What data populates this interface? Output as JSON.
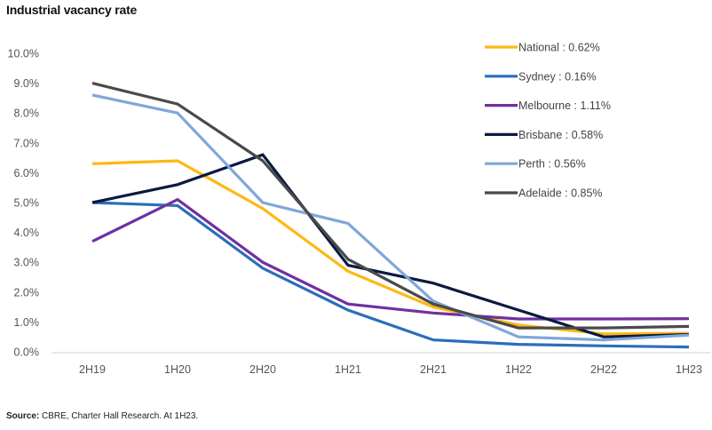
{
  "chart_data": {
    "type": "line",
    "title": "Industrial vacancy rate",
    "xlabel": "",
    "ylabel": "",
    "ylim": [
      0,
      10
    ],
    "yticks": [
      "0.0%",
      "1.0%",
      "2.0%",
      "3.0%",
      "4.0%",
      "5.0%",
      "6.0%",
      "7.0%",
      "8.0%",
      "9.0%",
      "10.0%"
    ],
    "categories": [
      "2H19",
      "1H20",
      "2H20",
      "1H21",
      "2H21",
      "1H22",
      "2H22",
      "1H23"
    ],
    "grid": false,
    "legend_position": "top-right",
    "series": [
      {
        "name": "National",
        "legend_label": "National : 0.62%",
        "color": "#FDB813",
        "values": [
          6.3,
          6.4,
          4.8,
          2.7,
          1.5,
          0.9,
          0.6,
          0.62
        ]
      },
      {
        "name": "Sydney",
        "legend_label": "Sydney : 0.16%",
        "color": "#2A6EBB",
        "values": [
          5.0,
          4.9,
          2.8,
          1.4,
          0.4,
          0.25,
          0.2,
          0.16
        ]
      },
      {
        "name": "Melbourne",
        "legend_label": "Melbourne : 1.11%",
        "color": "#7030A0",
        "values": [
          3.7,
          5.1,
          3.0,
          1.6,
          1.3,
          1.1,
          1.1,
          1.11
        ]
      },
      {
        "name": "Brisbane",
        "legend_label": "Brisbane : 0.58%",
        "color": "#0A1A40",
        "values": [
          5.0,
          5.6,
          6.6,
          2.9,
          2.3,
          1.4,
          0.5,
          0.58
        ]
      },
      {
        "name": "Perth",
        "legend_label": "Perth : 0.56%",
        "color": "#7FA7D9",
        "values": [
          8.6,
          8.0,
          5.0,
          4.3,
          1.7,
          0.5,
          0.4,
          0.56
        ]
      },
      {
        "name": "Adelaide",
        "legend_label": "Adelaide : 0.85%",
        "color": "#4A4A4A",
        "values": [
          9.0,
          8.3,
          6.4,
          3.1,
          1.6,
          0.8,
          0.8,
          0.85
        ]
      }
    ]
  },
  "source": {
    "label": "Source:",
    "text": " CBRE, Charter Hall Research. At 1H23."
  }
}
